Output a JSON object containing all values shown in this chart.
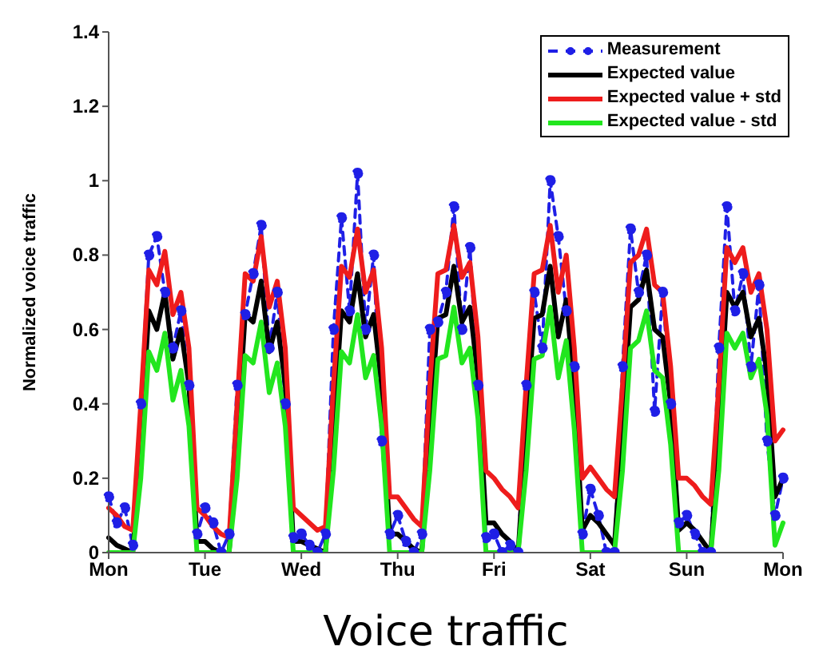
{
  "chart_data": {
    "type": "line",
    "xlabel": "Voice traffic",
    "ylabel": "Normalized voice traffic",
    "categories": [
      "Mon",
      null,
      null,
      null,
      null,
      null,
      null,
      null,
      null,
      null,
      null,
      null,
      "Tue",
      null,
      null,
      null,
      null,
      null,
      null,
      null,
      null,
      null,
      null,
      null,
      "Wed",
      null,
      null,
      null,
      null,
      null,
      null,
      null,
      null,
      null,
      null,
      null,
      "Thu",
      null,
      null,
      null,
      null,
      null,
      null,
      null,
      null,
      null,
      null,
      null,
      "Fri",
      null,
      null,
      null,
      null,
      null,
      null,
      null,
      null,
      null,
      null,
      null,
      "Sat",
      null,
      null,
      null,
      null,
      null,
      null,
      null,
      null,
      null,
      null,
      null,
      "Sun",
      null,
      null,
      null,
      null,
      null,
      null,
      null,
      null,
      null,
      null,
      null,
      "Mon"
    ],
    "series": [
      {
        "name": "Measurement",
        "color": "#1f1fe6",
        "line_style": "dashed",
        "marker": "circle",
        "values": [
          0.15,
          0.08,
          0.12,
          0.02,
          0.4,
          0.8,
          0.85,
          0.7,
          0.55,
          0.65,
          0.45,
          0.05,
          0.12,
          0.08,
          0,
          0.05,
          0.45,
          0.64,
          0.75,
          0.88,
          0.55,
          0.7,
          0.4,
          0.04,
          0.05,
          0.02,
          0,
          0.05,
          0.6,
          0.9,
          0.65,
          1.02,
          0.6,
          0.8,
          0.3,
          0.05,
          0.1,
          0.03,
          0,
          0.05,
          0.6,
          0.62,
          0.7,
          0.93,
          0.6,
          0.82,
          0.45,
          0.04,
          0.05,
          0,
          0.02,
          0,
          0.45,
          0.7,
          0.55,
          1,
          0.85,
          0.65,
          0.5,
          0.05,
          0.17,
          0.1,
          0,
          0,
          0.5,
          0.87,
          0.7,
          0.8,
          0.38,
          0.7,
          0.4,
          0.08,
          0.1,
          0.05,
          0,
          0,
          0.55,
          0.93,
          0.65,
          0.75,
          0.5,
          0.72,
          0.3,
          0.1,
          0.2
        ]
      },
      {
        "name": "Expected value",
        "color": "#000000",
        "line_style": "solid",
        "marker": "none",
        "values": [
          0.04,
          0.02,
          0.01,
          0,
          0.3,
          0.65,
          0.6,
          0.7,
          0.52,
          0.6,
          0.45,
          0.03,
          0.03,
          0.01,
          0,
          0,
          0.3,
          0.64,
          0.62,
          0.73,
          0.54,
          0.62,
          0.45,
          0.03,
          0.03,
          0.02,
          0.01,
          0,
          0.33,
          0.65,
          0.62,
          0.75,
          0.58,
          0.64,
          0.45,
          0.05,
          0.05,
          0.03,
          0.01,
          0,
          0.33,
          0.63,
          0.64,
          0.77,
          0.62,
          0.66,
          0.47,
          0.08,
          0.08,
          0.05,
          0.03,
          0,
          0.33,
          0.63,
          0.64,
          0.77,
          0.58,
          0.68,
          0.44,
          0.06,
          0.1,
          0.08,
          0.05,
          0.02,
          0.33,
          0.66,
          0.68,
          0.76,
          0.6,
          0.58,
          0.4,
          0.06,
          0.08,
          0.06,
          0.03,
          0,
          0.33,
          0.7,
          0.66,
          0.7,
          0.58,
          0.63,
          0.48,
          0.15,
          0.2
        ]
      },
      {
        "name": "Expected value + std",
        "color": "#ee1c1c",
        "line_style": "solid",
        "marker": "none",
        "values": [
          0.12,
          0.1,
          0.07,
          0.06,
          0.4,
          0.76,
          0.72,
          0.81,
          0.64,
          0.7,
          0.55,
          0.12,
          0.1,
          0.07,
          0.05,
          0.04,
          0.4,
          0.75,
          0.73,
          0.85,
          0.66,
          0.73,
          0.55,
          0.12,
          0.1,
          0.08,
          0.06,
          0.07,
          0.45,
          0.77,
          0.74,
          0.87,
          0.7,
          0.76,
          0.55,
          0.15,
          0.15,
          0.12,
          0.09,
          0.07,
          0.45,
          0.75,
          0.76,
          0.88,
          0.74,
          0.78,
          0.58,
          0.22,
          0.2,
          0.17,
          0.15,
          0.12,
          0.45,
          0.75,
          0.76,
          0.88,
          0.7,
          0.8,
          0.55,
          0.2,
          0.23,
          0.2,
          0.17,
          0.15,
          0.45,
          0.78,
          0.8,
          0.87,
          0.72,
          0.7,
          0.5,
          0.2,
          0.2,
          0.18,
          0.15,
          0.13,
          0.45,
          0.82,
          0.78,
          0.82,
          0.7,
          0.75,
          0.6,
          0.3,
          0.33
        ]
      },
      {
        "name": "Expected value - std",
        "color": "#22e61e",
        "line_style": "solid",
        "marker": "none",
        "values": [
          0,
          0,
          0,
          0,
          0.2,
          0.54,
          0.49,
          0.59,
          0.41,
          0.49,
          0.34,
          0,
          0,
          0,
          0,
          0,
          0.2,
          0.53,
          0.51,
          0.62,
          0.43,
          0.51,
          0.34,
          0,
          0,
          0,
          0,
          0,
          0.22,
          0.54,
          0.51,
          0.64,
          0.47,
          0.53,
          0.34,
          0,
          0,
          0,
          0,
          0,
          0.22,
          0.52,
          0.53,
          0.66,
          0.51,
          0.55,
          0.36,
          0,
          0,
          0,
          0,
          0,
          0.22,
          0.52,
          0.53,
          0.66,
          0.47,
          0.57,
          0.33,
          0,
          0,
          0,
          0,
          0,
          0.22,
          0.55,
          0.57,
          0.65,
          0.49,
          0.47,
          0.29,
          0,
          0,
          0,
          0,
          0,
          0.22,
          0.59,
          0.55,
          0.59,
          0.47,
          0.52,
          0.37,
          0.02,
          0.08
        ]
      }
    ],
    "ylim": [
      0,
      1.4
    ],
    "yticks": [
      0,
      0.2,
      0.4,
      0.6,
      0.8,
      1,
      1.2,
      1.4
    ],
    "grid": false,
    "legend": "top right"
  }
}
